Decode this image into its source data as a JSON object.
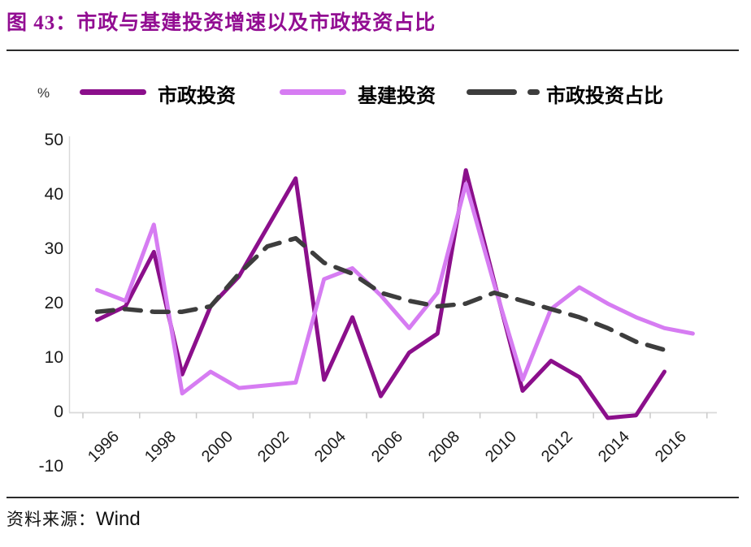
{
  "figure": {
    "title": "图 43：市政与基建投资增速以及市政投资占比",
    "source_prefix": "资料来源：",
    "source_name": "Wind"
  },
  "axes": {
    "unit_label": "%",
    "y_ticks": [
      "50",
      "40",
      "30",
      "20",
      "10",
      "0",
      "-10"
    ],
    "x_ticks": [
      "1996",
      "1998",
      "2000",
      "2002",
      "2004",
      "2006",
      "2008",
      "2010",
      "2012",
      "2014",
      "2016"
    ]
  },
  "legend": [
    {
      "label": "市政投资",
      "color": "#8b0f8b",
      "style": "solid"
    },
    {
      "label": "基建投资",
      "color": "#d67cf2",
      "style": "solid"
    },
    {
      "label": "市政投资占比",
      "color": "#3d3d3d",
      "style": "dashed"
    }
  ],
  "chart_data": {
    "type": "line",
    "title": "图 43：市政与基建投资增速以及市政投资占比",
    "ylabel": "%",
    "ylim": [
      -10,
      50
    ],
    "x_range": [
      1996,
      2017
    ],
    "grid": false,
    "legend_position": "top",
    "series": [
      {
        "name": "市政投资",
        "color": "#8b0f8b",
        "dash": false,
        "start_year": 1996,
        "values": [
          17,
          19.5,
          29.5,
          7,
          19.5,
          25,
          34,
          43,
          6,
          17.5,
          3,
          11,
          14.5,
          44.5,
          24,
          4,
          9.5,
          6.5,
          -1,
          -0.5,
          7.5
        ]
      },
      {
        "name": "基建投资",
        "color": "#d67cf2",
        "dash": false,
        "start_year": 1996,
        "values": [
          22.5,
          20.5,
          34.5,
          3.5,
          7.5,
          4.5,
          5,
          5.5,
          24.5,
          26.5,
          21.5,
          15.5,
          22,
          42,
          23.5,
          6,
          19,
          23,
          20,
          17.5,
          15.5,
          14.5
        ]
      },
      {
        "name": "市政投资占比",
        "color": "#3d3d3d",
        "dash": true,
        "start_year": 1996,
        "values": [
          18.5,
          19,
          18.5,
          18.5,
          19.5,
          25.5,
          30.5,
          32,
          27.5,
          25.5,
          22,
          20.5,
          19.5,
          20,
          22,
          20.5,
          19,
          17.5,
          15.5,
          13,
          11.5
        ]
      }
    ]
  }
}
